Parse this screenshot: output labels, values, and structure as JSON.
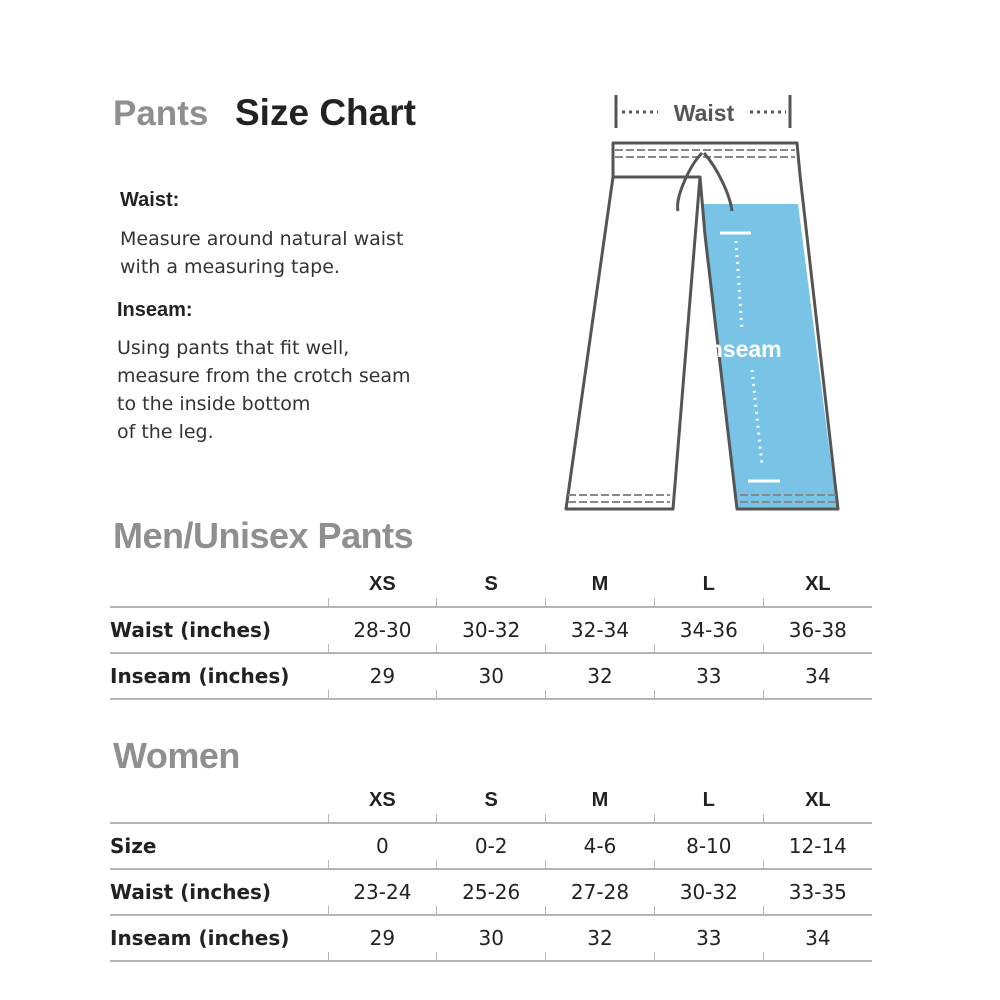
{
  "title": {
    "light": "Pants",
    "dark": "Size Chart"
  },
  "instructions": {
    "waist": {
      "heading": "Waist:",
      "text": "Measure around natural waist\nwith a measuring tape."
    },
    "inseam": {
      "heading": "Inseam:",
      "text": "Using pants that fit well,\nmeasure from the crotch seam\nto the inside bottom\nof the leg."
    }
  },
  "diagram": {
    "waist_label": "Waist",
    "inseam_label": "Inseam",
    "highlight_color": "#79c3e6",
    "outline_color": "#555555"
  },
  "men": {
    "title": "Men/Unisex  Pants",
    "sizes": [
      "XS",
      "S",
      "M",
      "L",
      "XL"
    ],
    "rows": [
      {
        "label": "Waist (inches)",
        "values": [
          "28-30",
          "30-32",
          "32-34",
          "34-36",
          "36-38"
        ]
      },
      {
        "label": "Inseam (inches)",
        "values": [
          "29",
          "30",
          "32",
          "33",
          "34"
        ]
      }
    ]
  },
  "women": {
    "title": "Women",
    "sizes": [
      "XS",
      "S",
      "M",
      "L",
      "XL"
    ],
    "rows": [
      {
        "label": "Size",
        "values": [
          "0",
          "0-2",
          "4-6",
          "8-10",
          "12-14"
        ]
      },
      {
        "label": "Waist (inches)",
        "values": [
          "23-24",
          "25-26",
          "27-28",
          "30-32",
          "33-35"
        ]
      },
      {
        "label": "Inseam (inches)",
        "values": [
          "29",
          "30",
          "32",
          "33",
          "34"
        ]
      }
    ]
  }
}
